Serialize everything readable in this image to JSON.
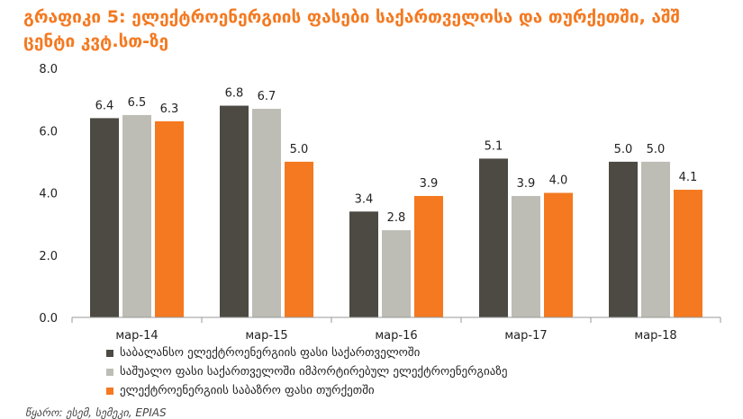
{
  "title": "გრაფიკი 5: ელექტროენერგიის ფასები საქართველოსა და თურქეთში, აშშ ცენტი კვტ.სთ-ზე",
  "source": "წყარო: ესემ, სემეკი, EPIAS",
  "colors": {
    "title": "#F47920",
    "series": [
      "#4D4A44",
      "#BDBDB6",
      "#F47920"
    ]
  },
  "chart_data": {
    "type": "bar",
    "categories": [
      "мар-14",
      "мар-15",
      "мар-16",
      "мар-17",
      "мар-18"
    ],
    "series": [
      {
        "name": "საბალანსო ელექტროენერგიის ფასი საქართველოში",
        "values": [
          6.4,
          6.8,
          3.4,
          5.1,
          5.0
        ]
      },
      {
        "name": "საშუალო ფასი საქართველოში იმპორტირებულ ელექტროენერგიაზე",
        "values": [
          6.5,
          6.7,
          2.8,
          3.9,
          5.0
        ]
      },
      {
        "name": "ელექტროენერგიის საბაზრო ფასი თურქეთში",
        "values": [
          6.3,
          5.0,
          3.9,
          4.0,
          4.1
        ]
      }
    ],
    "ylim": [
      0,
      8
    ],
    "yticks": [
      "0.0",
      "2.0",
      "4.0",
      "6.0",
      "8.0"
    ],
    "grid": false,
    "legend_position": "bottom"
  }
}
